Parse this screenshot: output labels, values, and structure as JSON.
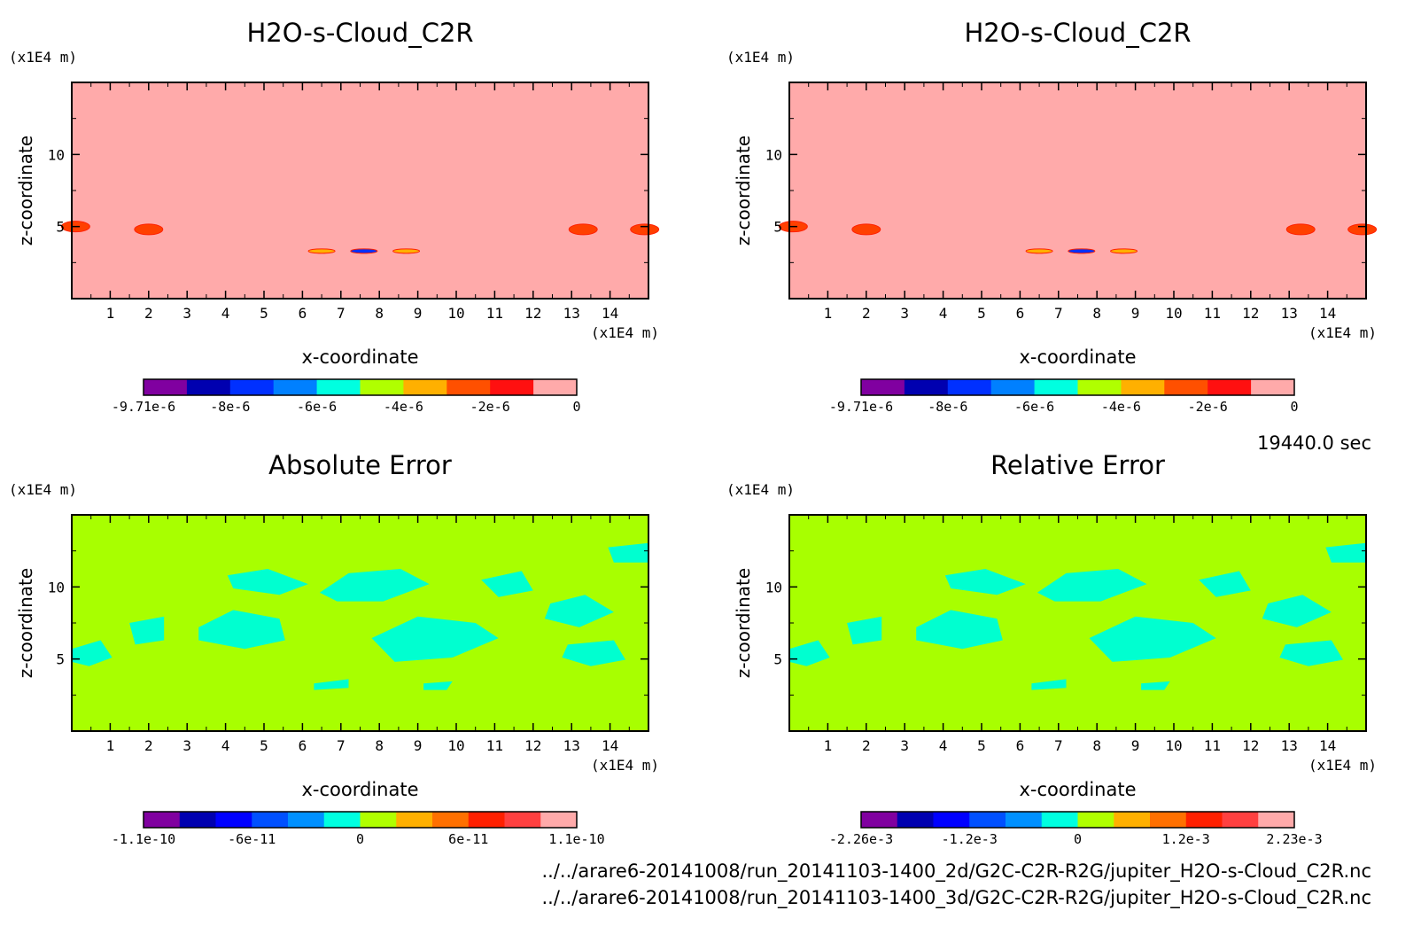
{
  "time_label": "19440.0 sec",
  "files": [
    "../../arare6-20141008/run_20141103-1400_2d/G2C-C2R-R2G/jupiter_H2O-s-Cloud_C2R.nc",
    "../../arare6-20141008/run_20141103-1400_3d/G2C-C2R-R2G/jupiter_H2O-s-Cloud_C2R.nc"
  ],
  "chart_data": [
    {
      "type": "heatmap",
      "title": "H2O-s-Cloud_C2R",
      "xlabel": "x-coordinate",
      "ylabel": "z-coordinate",
      "xunit": "(x1E4 m)",
      "yunit": "(x1E4 m)",
      "xlim": [
        0,
        15
      ],
      "ylim": [
        0,
        15
      ],
      "xticks": [
        "1",
        "2",
        "3",
        "4",
        "5",
        "6",
        "7",
        "8",
        "9",
        "10",
        "11",
        "12",
        "13",
        "14"
      ],
      "yticks": [
        "5",
        "10"
      ],
      "colorbar": {
        "colors": [
          "#8000a0",
          "#0000b0",
          "#0030ff",
          "#0080ff",
          "#00ffe0",
          "#b0ff00",
          "#ffb000",
          "#ff5000",
          "#ff1010",
          "#ffaaaa"
        ],
        "labels": [
          "-9.71e-6",
          "-8e-6",
          "-6e-6",
          "-4e-6",
          "-2e-6",
          "0"
        ]
      },
      "background": "#ffaaaa",
      "features": [
        {
          "x": 0.1,
          "z": 5.0,
          "value": "-2e-6"
        },
        {
          "x": 2.0,
          "z": 4.8,
          "value": "-2e-6"
        },
        {
          "x": 6.5,
          "z": 3.3,
          "value": "-4e-6"
        },
        {
          "x": 7.6,
          "z": 3.3,
          "value": "-9.71e-6"
        },
        {
          "x": 8.7,
          "z": 3.3,
          "value": "-4e-6"
        },
        {
          "x": 13.3,
          "z": 4.8,
          "value": "-2e-6"
        },
        {
          "x": 14.9,
          "z": 4.8,
          "value": "-2e-6"
        }
      ]
    },
    {
      "type": "heatmap",
      "title": "H2O-s-Cloud_C2R",
      "xlabel": "x-coordinate",
      "ylabel": "z-coordinate",
      "xunit": "(x1E4 m)",
      "yunit": "(x1E4 m)",
      "xlim": [
        0,
        15
      ],
      "ylim": [
        0,
        15
      ],
      "xticks": [
        "1",
        "2",
        "3",
        "4",
        "5",
        "6",
        "7",
        "8",
        "9",
        "10",
        "11",
        "12",
        "13",
        "14"
      ],
      "yticks": [
        "5",
        "10"
      ],
      "colorbar": {
        "colors": [
          "#8000a0",
          "#0000b0",
          "#0030ff",
          "#0080ff",
          "#00ffe0",
          "#b0ff00",
          "#ffb000",
          "#ff5000",
          "#ff1010",
          "#ffaaaa"
        ],
        "labels": [
          "-9.71e-6",
          "-8e-6",
          "-6e-6",
          "-4e-6",
          "-2e-6",
          "0"
        ]
      },
      "background": "#ffaaaa",
      "features": [
        {
          "x": 0.1,
          "z": 5.0,
          "value": "-2e-6"
        },
        {
          "x": 2.0,
          "z": 4.8,
          "value": "-2e-6"
        },
        {
          "x": 6.5,
          "z": 3.3,
          "value": "-4e-6"
        },
        {
          "x": 7.6,
          "z": 3.3,
          "value": "-9.71e-6"
        },
        {
          "x": 8.7,
          "z": 3.3,
          "value": "-4e-6"
        },
        {
          "x": 13.3,
          "z": 4.8,
          "value": "-2e-6"
        },
        {
          "x": 14.9,
          "z": 4.8,
          "value": "-2e-6"
        }
      ]
    },
    {
      "type": "heatmap",
      "title": "Absolute Error",
      "xlabel": "x-coordinate",
      "ylabel": "z-coordinate",
      "xunit": "(x1E4 m)",
      "yunit": "(x1E4 m)",
      "xlim": [
        0,
        15
      ],
      "ylim": [
        0,
        15
      ],
      "xticks": [
        "1",
        "2",
        "3",
        "4",
        "5",
        "6",
        "7",
        "8",
        "9",
        "10",
        "11",
        "12",
        "13",
        "14"
      ],
      "yticks": [
        "5",
        "10"
      ],
      "colorbar": {
        "colors": [
          "#8000a0",
          "#0000b0",
          "#0000ff",
          "#0050ff",
          "#0090ff",
          "#00ffe0",
          "#b0ff00",
          "#ffb000",
          "#ff7000",
          "#ff2000",
          "#ff4040",
          "#ffaaaa"
        ],
        "labels": [
          "-1.1e-10",
          "-6e-11",
          "0",
          "6e-11",
          "1.1e-10"
        ]
      },
      "background": "#a8ff00"
    },
    {
      "type": "heatmap",
      "title": "Relative Error",
      "xlabel": "x-coordinate",
      "ylabel": "z-coordinate",
      "xunit": "(x1E4 m)",
      "yunit": "(x1E4 m)",
      "xlim": [
        0,
        15
      ],
      "ylim": [
        0,
        15
      ],
      "xticks": [
        "1",
        "2",
        "3",
        "4",
        "5",
        "6",
        "7",
        "8",
        "9",
        "10",
        "11",
        "12",
        "13",
        "14"
      ],
      "yticks": [
        "5",
        "10"
      ],
      "colorbar": {
        "colors": [
          "#8000a0",
          "#0000b0",
          "#0000ff",
          "#0050ff",
          "#0090ff",
          "#00ffe0",
          "#b0ff00",
          "#ffb000",
          "#ff7000",
          "#ff2000",
          "#ff4040",
          "#ffaaaa"
        ],
        "labels": [
          "-2.26e-3",
          "-1.2e-3",
          "0",
          "1.2e-3",
          "2.23e-3"
        ]
      },
      "background": "#a8ff00"
    }
  ]
}
